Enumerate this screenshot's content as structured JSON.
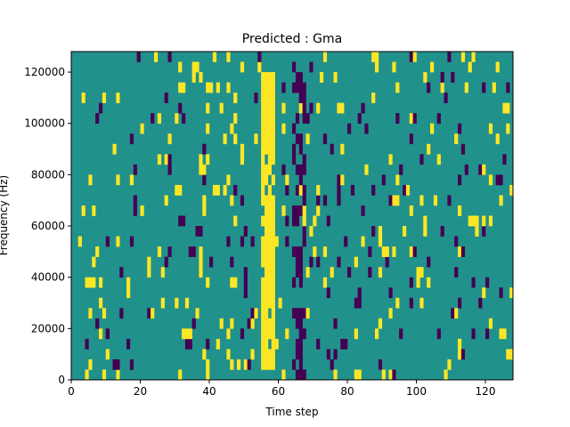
{
  "chart_data": {
    "type": "heatmap",
    "title": "Predicted : Gma",
    "xlabel": "Time step",
    "ylabel": "Frequency (Hz)",
    "xlim": [
      0,
      128
    ],
    "ylim": [
      0,
      128000
    ],
    "x_ticks": [
      0,
      20,
      40,
      60,
      80,
      100,
      120
    ],
    "y_ticks": [
      0,
      20000,
      40000,
      60000,
      80000,
      100000,
      120000
    ],
    "y_tick_labels": [
      "0",
      "20000",
      "40000",
      "60000",
      "80000",
      "100000",
      "120000"
    ],
    "grid": false,
    "colormap": "viridis",
    "colors": {
      "background_value": "#21918c",
      "high_value": "#fde725",
      "low_value": "#440154"
    },
    "dominant_features": [
      {
        "value": "high",
        "x": [
          55,
          59
        ],
        "y": [
          4000,
          120000
        ],
        "description": "vertical band"
      },
      {
        "value": "low",
        "x": [
          64,
          68
        ],
        "y": [
          0,
          122000
        ],
        "description": "vertical band"
      }
    ]
  }
}
